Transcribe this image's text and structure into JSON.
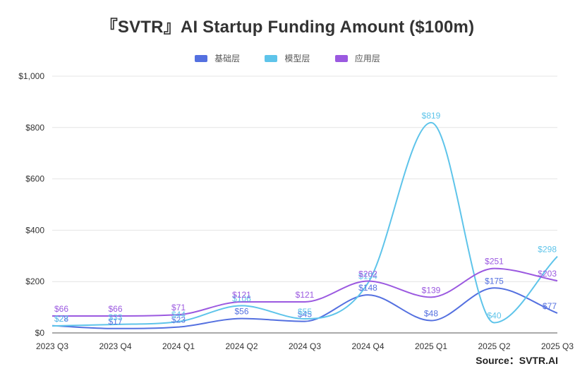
{
  "chart_data": {
    "type": "line",
    "title": "『SVTR』AI Startup Funding Amount ($100m)",
    "categories": [
      "2023 Q3",
      "2023 Q4",
      "2024 Q1",
      "2024 Q2",
      "2024 Q3",
      "2024 Q4",
      "2025 Q1",
      "2025 Q2",
      "2025 Q3"
    ],
    "series": [
      {
        "name": "基础层",
        "color": "#5470e0",
        "values": [
          28,
          17,
          23,
          56,
          45,
          148,
          48,
          175,
          77
        ],
        "labels": [
          "$28",
          "$17",
          "$23",
          "$56",
          "$45",
          "$148",
          "$48",
          "$175",
          "$77"
        ]
      },
      {
        "name": "模型层",
        "color": "#5ec4ea",
        "values": [
          27,
          33,
          44,
          106,
          55,
          194,
          819,
          40,
          298
        ],
        "labels": [
          "$27",
          "$33",
          "$44",
          "$106",
          "$55",
          "$194",
          "$819",
          "$40",
          "$298"
        ]
      },
      {
        "name": "应用层",
        "color": "#9b59e0",
        "values": [
          66,
          66,
          71,
          121,
          121,
          202,
          139,
          251,
          203
        ],
        "labels": [
          "$66",
          "$66",
          "$71",
          "$121",
          "$121",
          "$202",
          "$139",
          "$251",
          "$203"
        ]
      }
    ],
    "ylim": [
      0,
      1000
    ],
    "yticks": [
      0,
      200,
      400,
      600,
      800,
      1000
    ],
    "ytick_labels": [
      "$0",
      "$200",
      "$400",
      "$600",
      "$800",
      "$1,000"
    ],
    "legend_position": "top-center",
    "grid": true
  },
  "source": "Source：SVTR.AI"
}
